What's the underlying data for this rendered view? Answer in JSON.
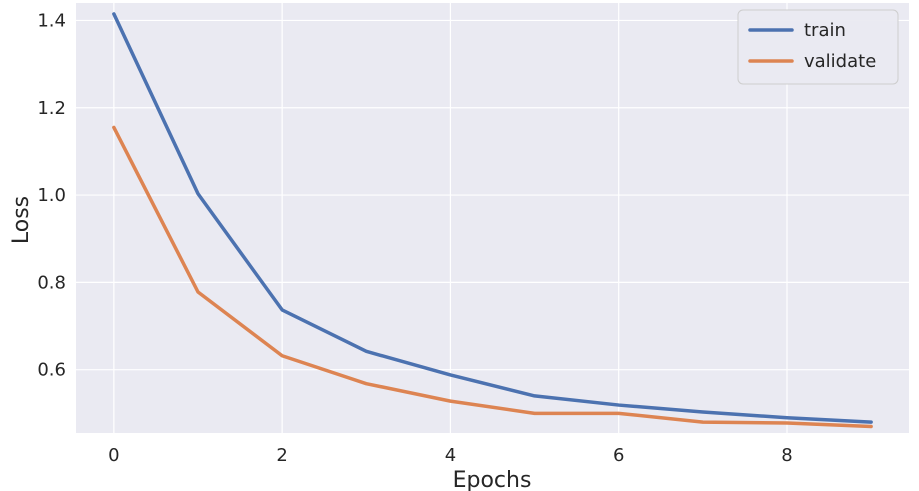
{
  "chart_data": {
    "type": "line",
    "title": "",
    "xlabel": "Epochs",
    "ylabel": "Loss",
    "x": [
      0,
      1,
      2,
      3,
      4,
      5,
      6,
      7,
      8,
      9
    ],
    "series": [
      {
        "name": "train",
        "color": "#4c72b0",
        "values": [
          1.415,
          1.003,
          0.737,
          0.642,
          0.588,
          0.54,
          0.519,
          0.503,
          0.49,
          0.48
        ]
      },
      {
        "name": "validate",
        "color": "#dd8452",
        "values": [
          1.155,
          0.778,
          0.632,
          0.568,
          0.528,
          0.5,
          0.5,
          0.48,
          0.478,
          0.47
        ]
      }
    ],
    "xlim": [
      -0.45,
      9.45
    ],
    "ylim": [
      0.455,
      1.44
    ],
    "xticks": [
      0,
      2,
      4,
      6,
      8
    ],
    "yticks": [
      0.6,
      0.8,
      1.0,
      1.2,
      1.4
    ],
    "xtick_labels": [
      "0",
      "2",
      "4",
      "6",
      "8"
    ],
    "ytick_labels": [
      "0.6",
      "0.8",
      "1.0",
      "1.2",
      "1.4"
    ],
    "grid": true,
    "legend_position": "top-right",
    "background": "#eaeaf2"
  }
}
